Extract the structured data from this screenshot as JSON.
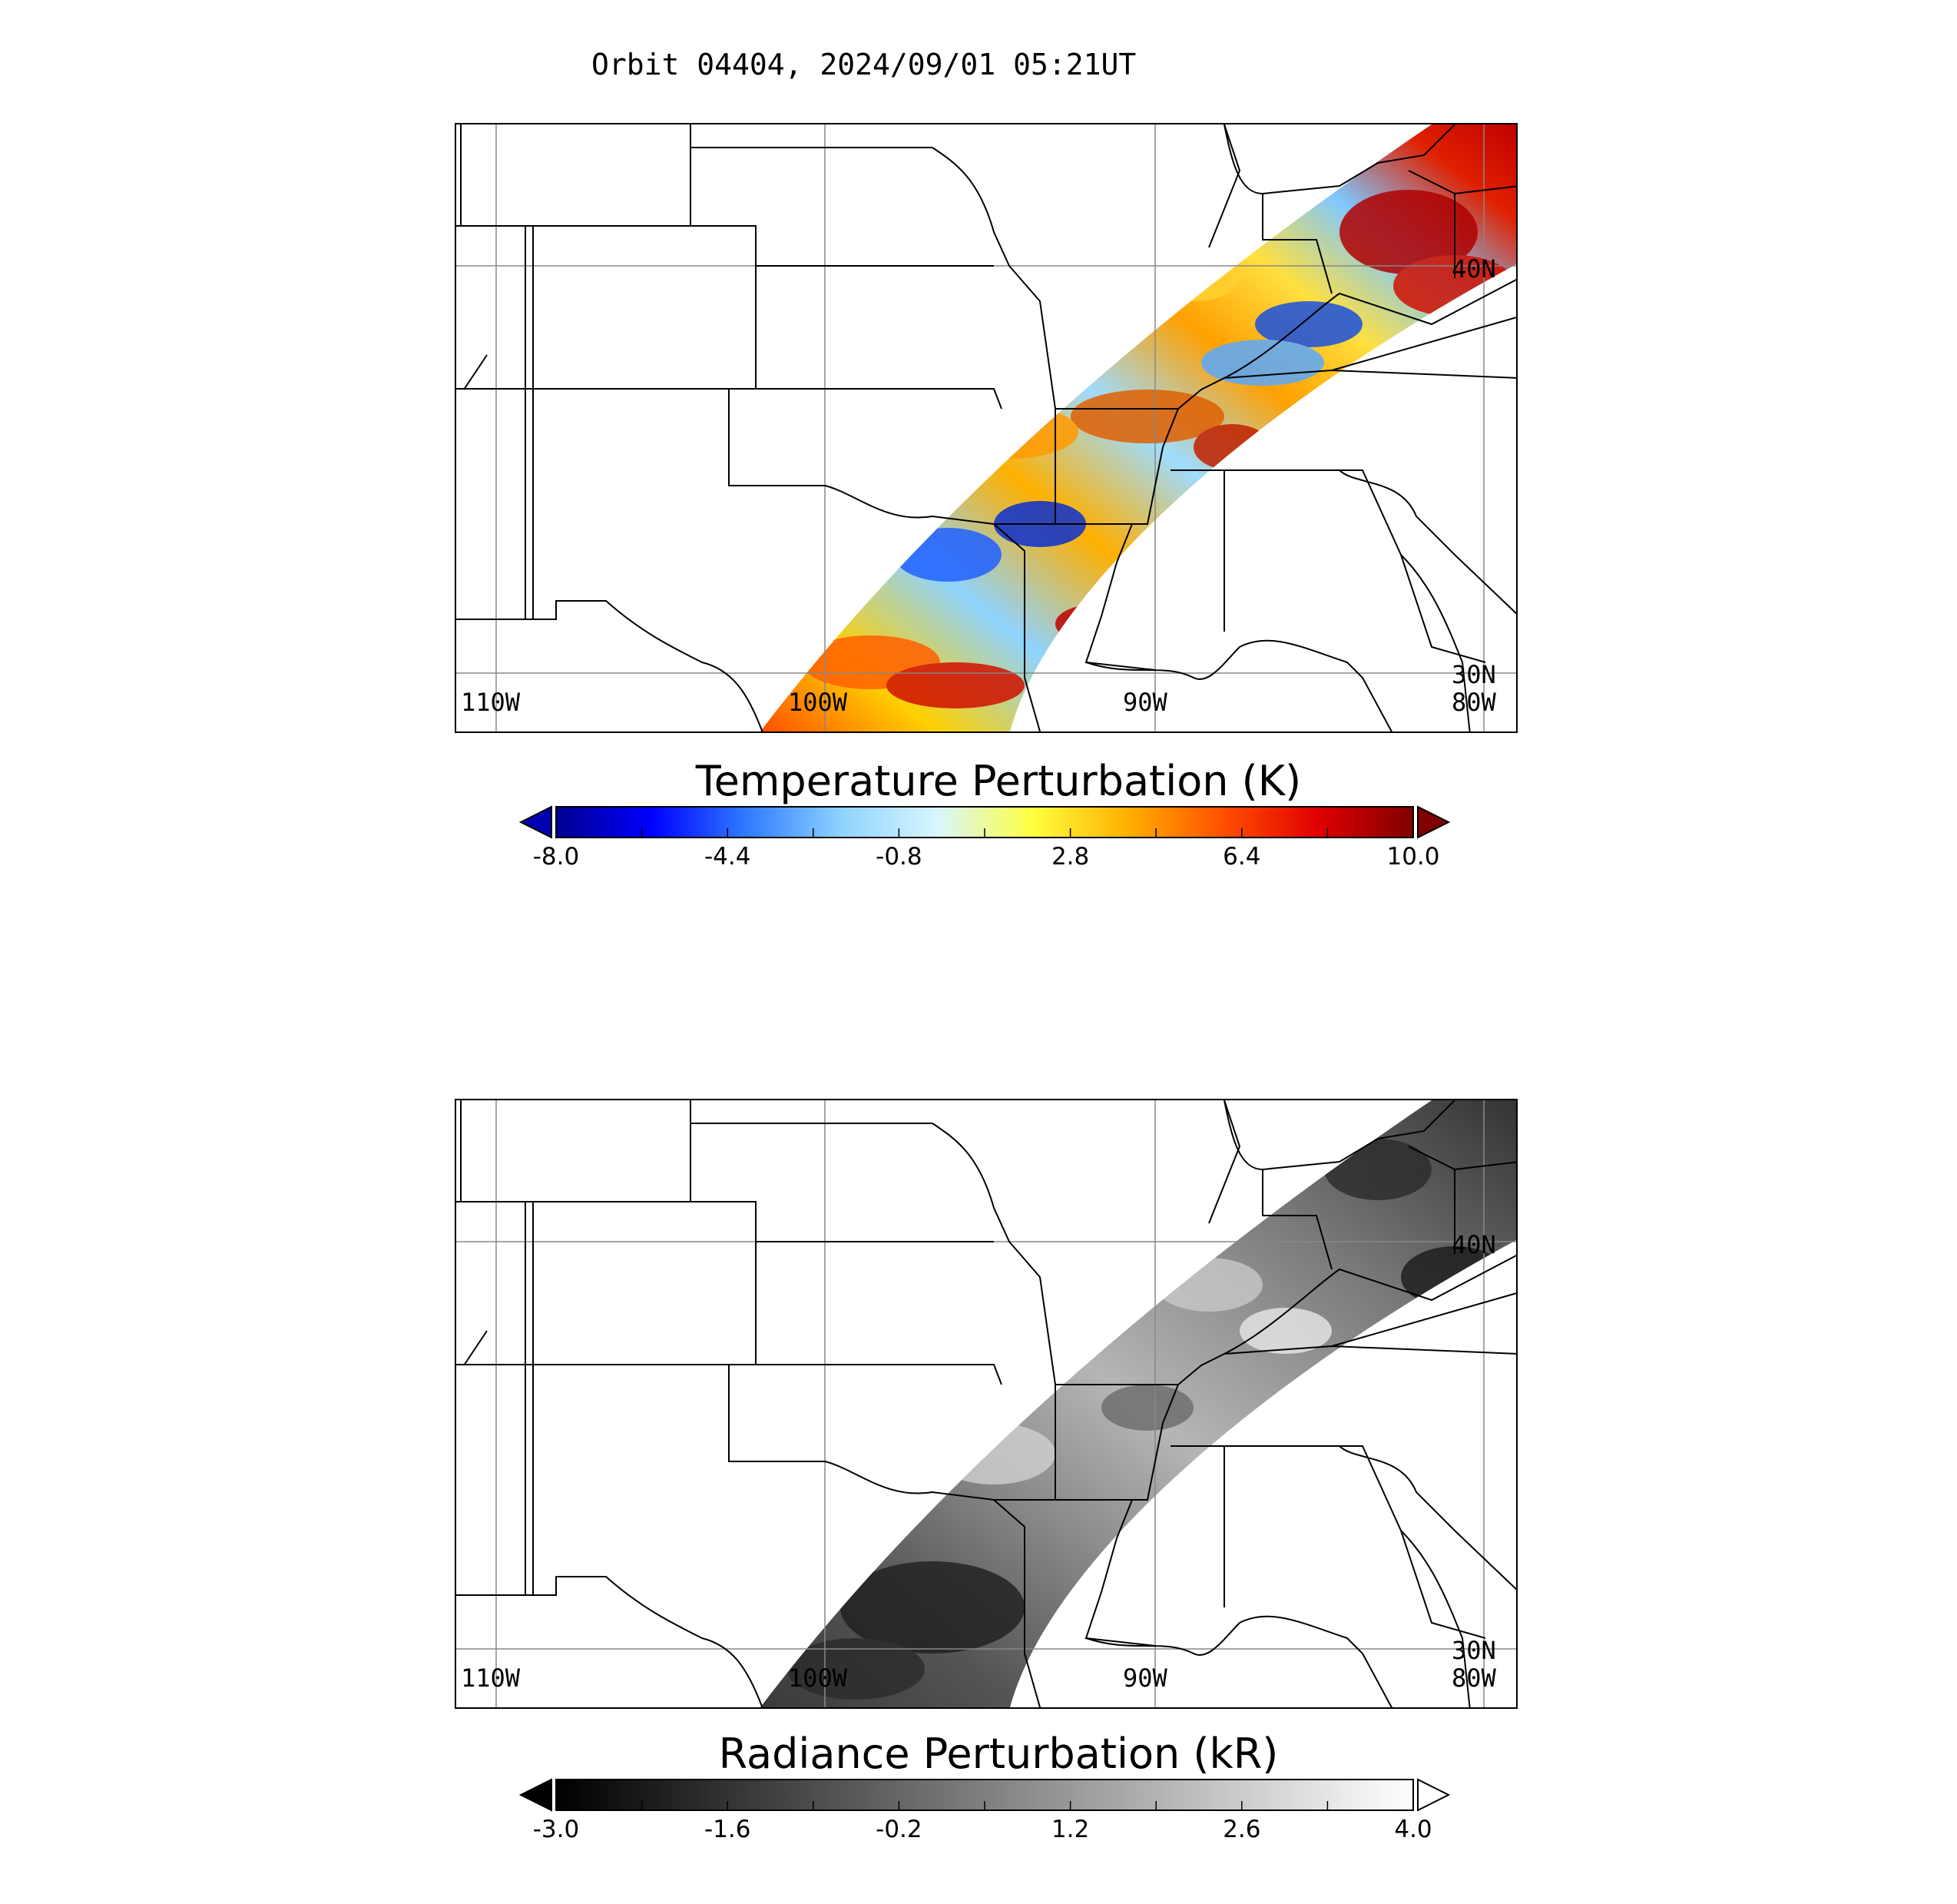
{
  "title": "Orbit 04404, 2024/09/01 05:21UT",
  "grid_labels": {
    "lon_110w": "110W",
    "lon_100w": "100W",
    "lon_90w": "90W",
    "lon_80w": "80W",
    "lat_40n": "40N",
    "lat_30n": "30N"
  },
  "panels": [
    {
      "name": "temperature",
      "colorbar": {
        "title": "Temperature Perturbation (K)",
        "ticks": [
          "-8.0",
          "-4.4",
          "-0.8",
          "2.8",
          "6.4",
          "10.0"
        ],
        "min": -8.0,
        "max": 10.0,
        "colors": [
          "#00008f",
          "#0000ff",
          "#2f7bff",
          "#8fd3ff",
          "#d8f6ff",
          "#ffff40",
          "#ffb000",
          "#ff5000",
          "#e00000",
          "#800000"
        ],
        "under_color": "#0000b0",
        "over_color": "#800000"
      }
    },
    {
      "name": "radiance",
      "colorbar": {
        "title": "Radiance Perturbation (kR)",
        "ticks": [
          "-3.0",
          "-1.6",
          "-0.2",
          "1.2",
          "2.6",
          "4.0"
        ],
        "min": -3.0,
        "max": 4.0,
        "colors": [
          "#000000",
          "#ffffff"
        ],
        "under_color": "#000000",
        "over_color": "#ffffff"
      }
    }
  ]
}
